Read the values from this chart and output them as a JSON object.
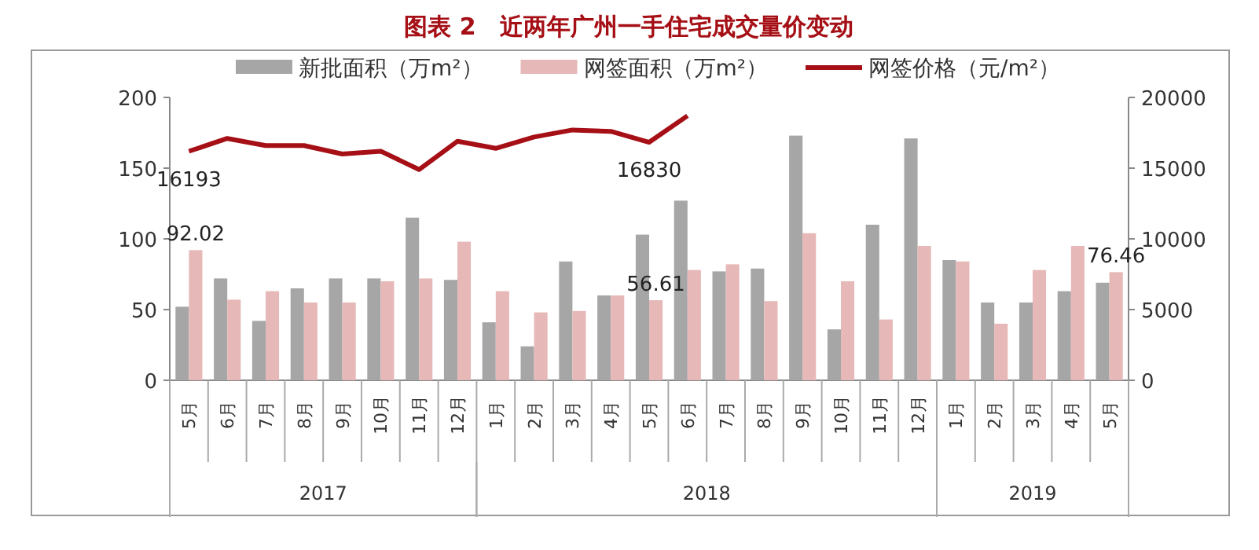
{
  "chart_data": {
    "type": "bar",
    "title": "图表 2　近两年广州一手住宅成交量价变动",
    "categories": [
      "5月",
      "6月",
      "7月",
      "8月",
      "9月",
      "10月",
      "11月",
      "12月",
      "1月",
      "2月",
      "3月",
      "4月",
      "5月",
      "6月",
      "7月",
      "8月",
      "9月",
      "10月",
      "11月",
      "12月",
      "1月",
      "2月",
      "3月",
      "4月",
      "5月"
    ],
    "annotations": [
      "2017",
      "2018",
      "2019"
    ],
    "series": [
      {
        "name": "新批面积（万m²）",
        "color": "#a6a6a6",
        "values": [
          52,
          72,
          42,
          65,
          72,
          72,
          115,
          71,
          41,
          24,
          84,
          60,
          103,
          127,
          77,
          79,
          173,
          36,
          110,
          171,
          85,
          55,
          55,
          63,
          69
        ]
      },
      {
        "name": "网签面积（万m²）",
        "color": "#e6b8b7",
        "values": [
          92.02,
          57,
          63,
          55,
          55,
          70,
          72,
          98,
          63,
          48,
          49,
          60,
          56.61,
          78,
          82,
          56,
          104,
          70,
          43,
          95,
          84,
          40,
          78,
          95,
          76.46
        ],
        "value_labels": [
          "92.02",
          null,
          null,
          null,
          null,
          null,
          null,
          null,
          null,
          null,
          null,
          null,
          "56.61",
          null,
          null,
          null,
          null,
          null,
          null,
          null,
          null,
          null,
          null,
          null,
          "76.46"
        ]
      },
      {
        "name": "网签价格（元/m²）",
        "color": "#a50f15",
        "type": "line",
        "axis": "y2",
        "values": [
          16193,
          17100,
          16600,
          16600,
          16000,
          16200,
          14900,
          16900,
          16400,
          17200,
          17700,
          17600,
          16830,
          18700,
          null,
          null,
          null,
          null,
          null,
          null,
          null,
          null,
          null,
          null,
          null
        ],
        "value_labels": [
          "16193",
          null,
          null,
          null,
          null,
          null,
          null,
          null,
          null,
          null,
          null,
          null,
          "16830",
          null,
          null,
          null,
          null,
          null,
          null,
          null,
          null,
          null,
          null,
          null,
          null
        ]
      }
    ],
    "ylim": [
      0,
      200
    ],
    "yticks": [
      0,
      50,
      100,
      150,
      200
    ],
    "y2lim": [
      0,
      20000
    ],
    "y2ticks": [
      0,
      5000,
      10000,
      15000,
      20000
    ],
    "legend": "top",
    "grid": false
  }
}
